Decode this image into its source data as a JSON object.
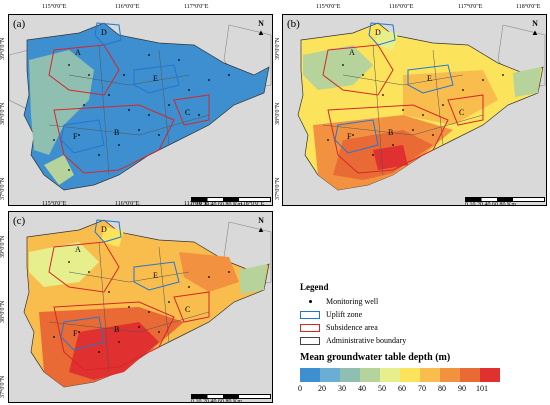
{
  "panels": [
    {
      "label": "(a)",
      "theme": "blue"
    },
    {
      "label": "(b)",
      "theme": "warm"
    },
    {
      "label": "(c)",
      "theme": "hot"
    }
  ],
  "coords": {
    "lon": [
      "115°0'0\"E",
      "116°0'0\"E",
      "117°0'0\"E",
      "118°0'0\"E"
    ],
    "lat": [
      "39°0'0\"N",
      "38°0'0\"N",
      "37°0'0\"N"
    ]
  },
  "zones": {
    "uplift": [
      "D",
      "E",
      "F"
    ],
    "subsidence": [
      "A",
      "B",
      "C"
    ]
  },
  "north_label": "N",
  "scale_bar": {
    "ticks": [
      "0",
      "10",
      "20",
      "40",
      "60",
      "80"
    ],
    "unit": "Km"
  },
  "legend": {
    "title": "Legend",
    "items": [
      {
        "label": "Monitoring well"
      },
      {
        "label": "Uplift zone"
      },
      {
        "label": "Subsidence area"
      },
      {
        "label": "Administrative boundary"
      }
    ],
    "colorbar_title": "Mean groundwater table depth (m)",
    "colorbar_ticks": [
      "0",
      "20",
      "30",
      "40",
      "50",
      "60",
      "70",
      "80",
      "90",
      "101"
    ],
    "colors": [
      "#3d8fcf",
      "#6aaed6",
      "#8fbfb0",
      "#b5d39a",
      "#e6ef8c",
      "#fce35c",
      "#f9bd4e",
      "#f29240",
      "#ea6a35",
      "#e0302f"
    ]
  }
}
